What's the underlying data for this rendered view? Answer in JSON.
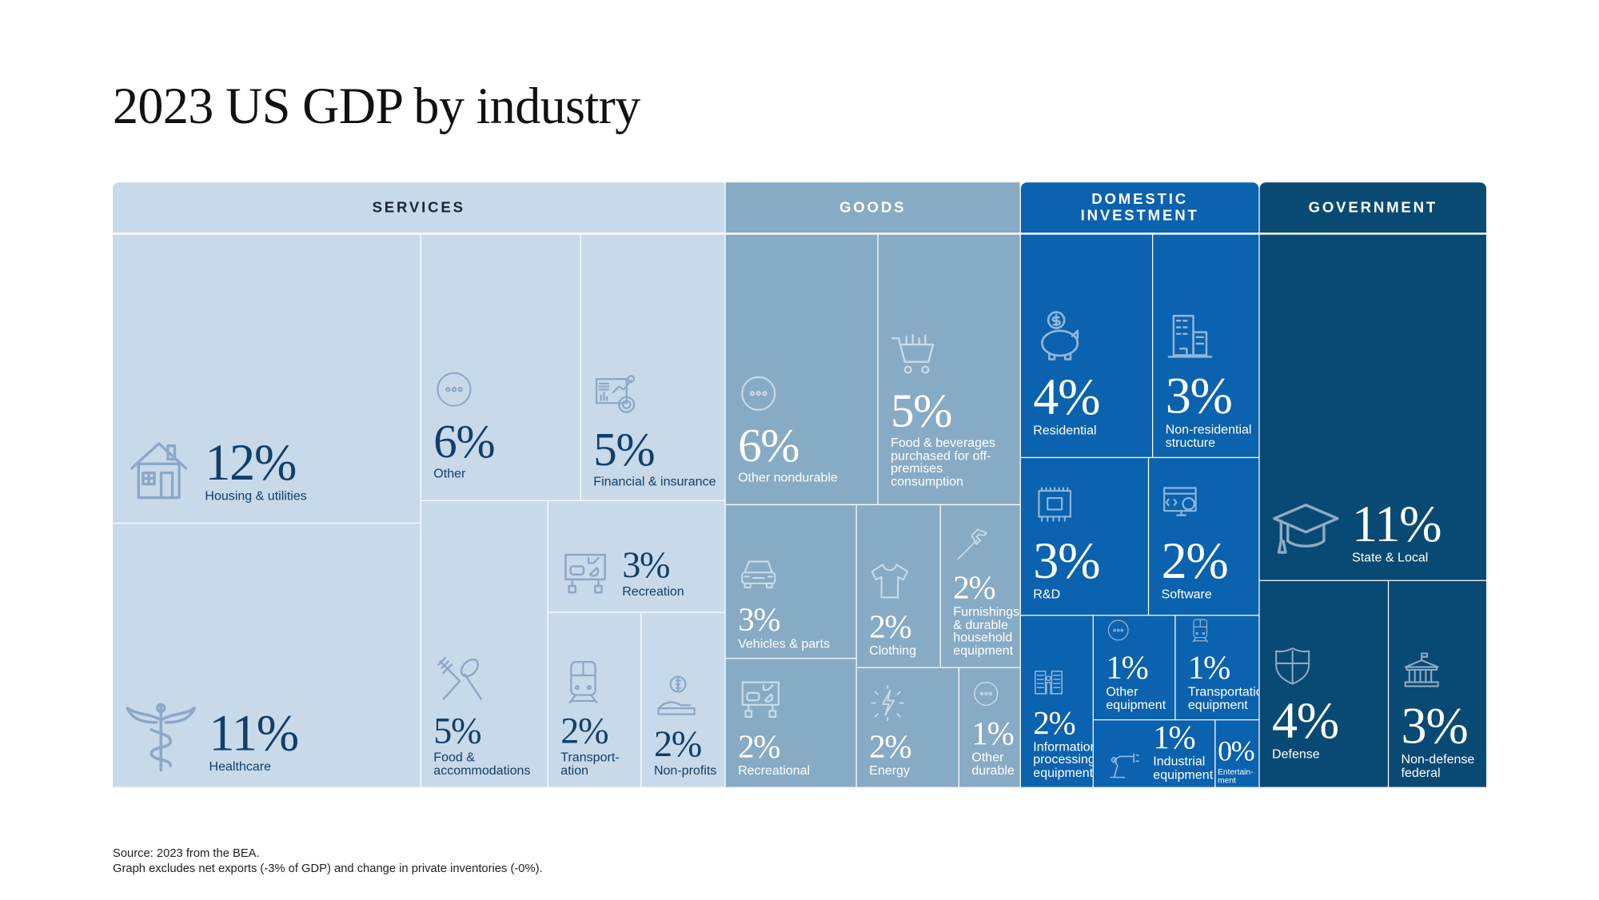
{
  "title": "2023 US GDP by industry",
  "footnotes": [
    "Source: 2023 from the BEA.",
    "Graph excludes net exports (-3% of GDP) and change in private inventories (-0%)."
  ],
  "colors": {
    "services": "#c8d9ea",
    "goods": "#87abc5",
    "domestic_investment": "#0b62ae",
    "government": "#094a74",
    "services_text": "#123f68",
    "services_icon": "#8ca8c6"
  },
  "chart_data": {
    "type": "treemap",
    "title": "2023 US GDP by industry",
    "unit": "% of GDP",
    "groups": [
      {
        "name": "SERVICES",
        "items": [
          {
            "label": "Housing & utilities",
            "value": "12%",
            "icon": "house-icon"
          },
          {
            "label": "Healthcare",
            "value": "11%",
            "icon": "caduceus-icon"
          },
          {
            "label": "Other",
            "value": "6%",
            "icon": "more-icon"
          },
          {
            "label": "Financial & insurance",
            "value": "5%",
            "icon": "finance-chart-icon"
          },
          {
            "label": "Food & accommodations",
            "value": "5%",
            "icon": "fork-spoon-icon"
          },
          {
            "label": "Recreation",
            "value": "3%",
            "icon": "recreation-icon"
          },
          {
            "label": "Transport-ation",
            "value": "2%",
            "icon": "train-icon"
          },
          {
            "label": "Non-profits",
            "value": "2%",
            "icon": "donation-icon"
          }
        ]
      },
      {
        "name": "GOODS",
        "items": [
          {
            "label": "Other nondurable",
            "value": "6%",
            "icon": "more-icon"
          },
          {
            "label": "Food & beverages purchased for off-premises consumption",
            "value": "5%",
            "icon": "shopping-cart-icon"
          },
          {
            "label": "Vehicles & parts",
            "value": "3%",
            "icon": "car-icon"
          },
          {
            "label": "Recreational",
            "value": "2%",
            "icon": "recreation-icon"
          },
          {
            "label": "Clothing",
            "value": "2%",
            "icon": "tshirt-icon"
          },
          {
            "label": "Furnishings & durable household equipment",
            "value": "2%",
            "icon": "hammer-icon"
          },
          {
            "label": "Energy",
            "value": "2%",
            "icon": "lightning-icon"
          },
          {
            "label": "Other durable",
            "value": "1%",
            "icon": "more-icon"
          }
        ]
      },
      {
        "name": "DOMESTIC INVESTMENT",
        "items": [
          {
            "label": "Residential",
            "value": "4%",
            "icon": "piggy-bank-icon"
          },
          {
            "label": "Non-residential structure",
            "value": "3%",
            "icon": "office-building-icon"
          },
          {
            "label": "R&D",
            "value": "3%",
            "icon": "circuit-board-icon"
          },
          {
            "label": "Software",
            "value": "2%",
            "icon": "software-icon"
          },
          {
            "label": "Information processing equipment",
            "value": "2%",
            "icon": "server-rack-icon"
          },
          {
            "label": "Other equipment",
            "value": "1%",
            "icon": "more-icon"
          },
          {
            "label": "Transportation equipment",
            "value": "1%",
            "icon": "train-icon"
          },
          {
            "label": "Industrial equipment",
            "value": "1%",
            "icon": "robot-arm-icon"
          },
          {
            "label": "Entertain-ment",
            "value": "0%",
            "icon": ""
          }
        ]
      },
      {
        "name": "GOVERNMENT",
        "items": [
          {
            "label": "State & Local",
            "value": "11%",
            "icon": "graduation-cap-icon"
          },
          {
            "label": "Defense",
            "value": "4%",
            "icon": "shield-icon"
          },
          {
            "label": "Non-defense federal",
            "value": "3%",
            "icon": "government-building-icon"
          }
        ]
      }
    ]
  }
}
